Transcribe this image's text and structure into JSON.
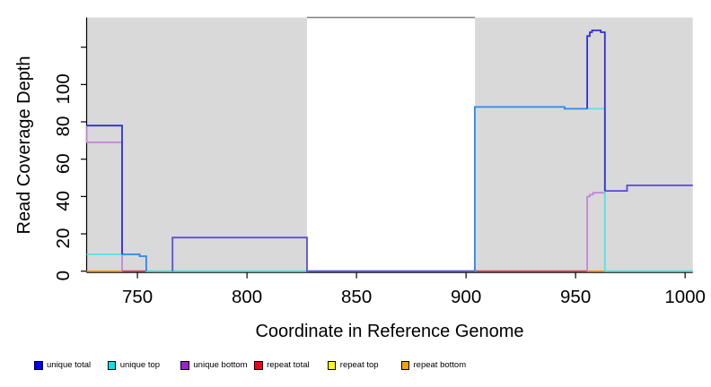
{
  "figure": {
    "x_title": "Coordinate in Reference Genome",
    "y_title": "Read Coverage Depth"
  },
  "colors": {
    "plot_bg_shaded": "#d9d9d9",
    "gap_top_border": "#7f7f7f",
    "axis": "#000000",
    "royal": "#2f2fd8",
    "dodger": "#2f89ee",
    "slate": "#5a4fd8",
    "cyan": "#55e2e8",
    "purple": "#c286d8",
    "green": "#86ca86",
    "crimson": "#d4455a",
    "orange_line": "#ff9b0d"
  },
  "legend": {
    "items": [
      {
        "label": "unique total",
        "color": "#0000f0"
      },
      {
        "label": "unique top",
        "color": "#00e4ee"
      },
      {
        "label": "unique bottom",
        "color": "#a020cc"
      },
      {
        "label": "repeat total",
        "color": "#f00018"
      },
      {
        "label": "repeat top",
        "color": "#fcfc00"
      },
      {
        "label": "repeat bottom",
        "color": "#ffa000"
      }
    ]
  },
  "chart_data": {
    "type": "line",
    "title": "",
    "xlabel": "Coordinate in Reference Genome",
    "ylabel": "Read Coverage Depth",
    "x_range": [
      726.8,
      1003.5
    ],
    "y_range": [
      0,
      136
    ],
    "grid": false,
    "legend_position": "bottom",
    "x_axis": {
      "ticks": [
        {
          "v": 750,
          "label": "750"
        },
        {
          "v": 800,
          "label": "800"
        },
        {
          "v": 850,
          "label": "850"
        },
        {
          "v": 900,
          "label": "900"
        },
        {
          "v": 950,
          "label": "950"
        },
        {
          "v": 1000,
          "label": "1000"
        }
      ]
    },
    "y_axis": {
      "ticks": [
        {
          "v": 0,
          "label": "0"
        },
        {
          "v": 20,
          "label": "20"
        },
        {
          "v": 40,
          "label": "40"
        },
        {
          "v": 60,
          "label": "60"
        },
        {
          "v": 80,
          "label": "80"
        },
        {
          "v": 100,
          "label": "100"
        },
        {
          "v": 120,
          "label": ""
        }
      ]
    },
    "shaded_regions": [
      [
        726.8,
        827.4
      ],
      [
        904.1,
        1003.5
      ]
    ],
    "gap_region": [
      827.4,
      904.1
    ],
    "series": [
      {
        "name": "unique total",
        "color": "#0000f0",
        "steps": [
          [
            726.8,
            78
          ],
          [
            743,
            9
          ],
          [
            751,
            8
          ],
          [
            754,
            0
          ],
          [
            766,
            18
          ],
          [
            827.4,
            0
          ],
          [
            904,
            88
          ],
          [
            945,
            87
          ],
          [
            955.3,
            126
          ],
          [
            956.5,
            128
          ],
          [
            957.5,
            129
          ],
          [
            961.5,
            128
          ],
          [
            963.4,
            43
          ],
          [
            973.5,
            46
          ],
          [
            1003.5,
            46
          ]
        ]
      },
      {
        "name": "unique top",
        "color": "#00e4ee",
        "steps": [
          [
            726.8,
            9
          ],
          [
            751,
            8
          ],
          [
            754,
            0
          ],
          [
            904,
            88
          ],
          [
            945,
            87
          ],
          [
            963.4,
            0
          ],
          [
            1003.5,
            0
          ]
        ]
      },
      {
        "name": "unique bottom",
        "color": "#a020cc",
        "steps": [
          [
            726.8,
            69
          ],
          [
            743,
            0
          ],
          [
            766,
            18
          ],
          [
            827.4,
            0
          ],
          [
            955.3,
            40
          ],
          [
            956.5,
            41
          ],
          [
            958,
            42
          ],
          [
            963.4,
            43
          ],
          [
            973.5,
            46
          ],
          [
            1003.5,
            46
          ]
        ]
      },
      {
        "name": "repeat total",
        "color": "#f00018",
        "steps": [
          [
            726.8,
            0
          ],
          [
            1003.5,
            0
          ]
        ]
      },
      {
        "name": "repeat top",
        "color": "#fcfc00",
        "steps": [
          [
            726.8,
            0
          ],
          [
            1003.5,
            0
          ]
        ]
      },
      {
        "name": "repeat bottom",
        "color": "#ffa000",
        "steps": [
          [
            726.8,
            0
          ],
          [
            1003.5,
            0
          ]
        ]
      }
    ],
    "render_segments": [
      {
        "color": "green",
        "points": [
          [
            754,
            0
          ],
          [
            827.4,
            0
          ]
        ]
      },
      {
        "color": "green",
        "points": [
          [
            963.4,
            0
          ],
          [
            1003.5,
            0
          ]
        ]
      },
      {
        "color": "crimson",
        "points": [
          [
            743,
            0
          ],
          [
            754,
            0
          ]
        ]
      },
      {
        "color": "crimson",
        "points": [
          [
            904,
            0
          ],
          [
            955.3,
            0
          ]
        ]
      },
      {
        "color": "orange_line",
        "points": [
          [
            726.8,
            0
          ],
          [
            743,
            0
          ]
        ]
      },
      {
        "color": "orange_line",
        "points": [
          [
            955.3,
            0
          ],
          [
            963.4,
            0
          ]
        ]
      },
      {
        "color": "purple",
        "start_v": 78,
        "points": [
          [
            726.8,
            69
          ],
          [
            743,
            0
          ]
        ]
      },
      {
        "color": "purple",
        "start_v": 0,
        "points": [
          [
            955.3,
            40
          ],
          [
            956.5,
            41
          ],
          [
            958,
            42
          ],
          [
            963.4,
            43
          ],
          [
            973.5,
            46
          ],
          [
            1003.5,
            46
          ]
        ]
      },
      {
        "color": "cyan",
        "points": [
          [
            726.8,
            9
          ],
          [
            751,
            8
          ],
          [
            754,
            0
          ],
          [
            904,
            88
          ],
          [
            945,
            87
          ],
          [
            963.4,
            0
          ],
          [
            1003.5,
            0
          ]
        ]
      },
      {
        "color": "slate",
        "start_v": 0,
        "points": [
          [
            766,
            18
          ],
          [
            827.4,
            0
          ],
          [
            904,
            0
          ]
        ]
      },
      {
        "color": "slate",
        "start_v": 43,
        "points": [
          [
            963.4,
            43
          ],
          [
            973.5,
            46
          ],
          [
            1003.5,
            46
          ]
        ]
      },
      {
        "color": "dodger",
        "start_v": 9,
        "points": [
          [
            743,
            9
          ],
          [
            751,
            8
          ],
          [
            754,
            0
          ]
        ]
      },
      {
        "color": "dodger",
        "start_v": 0,
        "points": [
          [
            904,
            88
          ],
          [
            945,
            87
          ],
          [
            955.3,
            87
          ]
        ]
      },
      {
        "color": "royal",
        "start_v": 78,
        "points": [
          [
            726.8,
            78
          ],
          [
            743,
            9
          ]
        ]
      },
      {
        "color": "royal",
        "start_v": 87,
        "points": [
          [
            955.3,
            126
          ],
          [
            956.5,
            128
          ],
          [
            957.5,
            129
          ],
          [
            961.5,
            128
          ],
          [
            963.4,
            43
          ]
        ]
      }
    ]
  }
}
